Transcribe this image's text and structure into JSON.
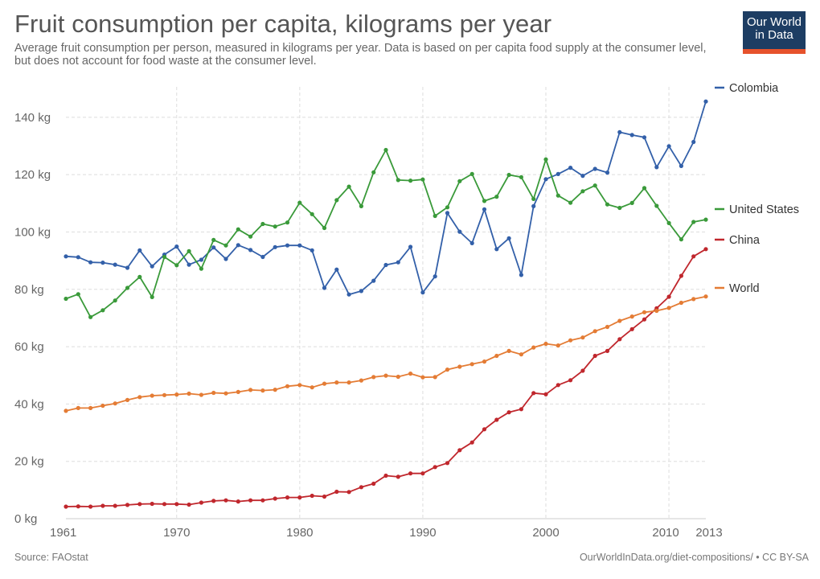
{
  "header": {
    "title": "Fruit consumption per capita, kilograms per year",
    "subtitle": "Average fruit consumption per person, measured in kilograms per year. Data is based on per capita food supply at the consumer level, but does not account for food waste at the consumer level.",
    "logo_line1": "Our World",
    "logo_line2": "in Data"
  },
  "footer": {
    "source": "Source: FAOstat",
    "credit": "OurWorldInData.org/diet-compositions/ • CC BY-SA"
  },
  "colors": {
    "Colombia": "#3360a9",
    "United States": "#3a9a3a",
    "China": "#c0272d",
    "World": "#e47c35"
  },
  "chart_data": {
    "type": "line",
    "title": "Fruit consumption per capita, kilograms per year",
    "ylabel": "",
    "xlabel": "",
    "xlim": [
      1961,
      2013
    ],
    "ylim": [
      0,
      145
    ],
    "y_ticks": [
      0,
      20,
      40,
      60,
      80,
      100,
      120,
      140
    ],
    "y_tick_labels": [
      "0 kg",
      "20 kg",
      "40 kg",
      "60 kg",
      "80 kg",
      "100 kg",
      "120 kg",
      "140 kg"
    ],
    "x_ticks": [
      1961,
      1970,
      1980,
      1990,
      2000,
      2010,
      2013
    ],
    "x_tick_labels": [
      "1961",
      "1970",
      "1980",
      "1990",
      "2000",
      "2010",
      "2013"
    ],
    "grid": true,
    "legend": "right",
    "x": [
      1961,
      1962,
      1963,
      1964,
      1965,
      1966,
      1967,
      1968,
      1969,
      1970,
      1971,
      1972,
      1973,
      1974,
      1975,
      1976,
      1977,
      1978,
      1979,
      1980,
      1981,
      1982,
      1983,
      1984,
      1985,
      1986,
      1987,
      1988,
      1989,
      1990,
      1991,
      1992,
      1993,
      1994,
      1995,
      1996,
      1997,
      1998,
      1999,
      2000,
      2001,
      2002,
      2003,
      2004,
      2005,
      2006,
      2007,
      2008,
      2009,
      2010,
      2011,
      2012,
      2013
    ],
    "series": [
      {
        "name": "Colombia",
        "values": [
          91.5,
          91.2,
          89.4,
          89.3,
          88.6,
          87.5,
          93.6,
          88.0,
          92.1,
          94.9,
          88.6,
          90.3,
          94.6,
          90.6,
          95.4,
          93.7,
          91.3,
          94.7,
          95.3,
          95.3,
          93.6,
          80.5,
          86.9,
          78.2,
          79.4,
          83.0,
          88.5,
          89.4,
          94.8,
          78.9,
          84.5,
          106.6,
          100.1,
          96.1,
          107.9,
          94.0,
          97.8,
          85.0,
          109.0,
          118.4,
          120.2,
          122.4,
          119.6,
          122.0,
          120.7,
          134.8,
          133.8,
          133.0,
          122.6,
          129.9,
          123.0,
          131.4,
          145.5
        ]
      },
      {
        "name": "United States",
        "values": [
          76.7,
          78.3,
          70.3,
          72.7,
          76.1,
          80.5,
          84.3,
          77.3,
          91.3,
          88.4,
          93.3,
          87.2,
          97.2,
          95.3,
          100.9,
          98.4,
          102.8,
          101.9,
          103.3,
          110.2,
          106.2,
          101.4,
          111.1,
          115.8,
          109.0,
          120.8,
          128.6,
          118.1,
          117.9,
          118.3,
          105.6,
          108.6,
          117.7,
          120.2,
          110.8,
          112.3,
          119.9,
          119.1,
          111.5,
          125.3,
          112.7,
          110.2,
          114.2,
          116.2,
          109.6,
          108.4,
          110.1,
          115.3,
          109.1,
          103.1,
          97.4,
          103.5,
          104.3
        ]
      },
      {
        "name": "China",
        "values": [
          4.2,
          4.3,
          4.2,
          4.5,
          4.5,
          4.8,
          5.1,
          5.2,
          5.1,
          5.1,
          4.9,
          5.6,
          6.2,
          6.4,
          6.0,
          6.4,
          6.4,
          7.0,
          7.4,
          7.4,
          8.0,
          7.7,
          9.4,
          9.3,
          11.0,
          12.2,
          15.0,
          14.6,
          15.8,
          15.8,
          18.0,
          19.4,
          23.9,
          26.6,
          31.2,
          34.5,
          37.1,
          38.2,
          43.8,
          43.4,
          46.6,
          48.3,
          51.6,
          56.8,
          58.5,
          62.6,
          66.1,
          69.5,
          73.4,
          77.4,
          84.7,
          91.5,
          94.0
        ]
      },
      {
        "name": "World",
        "values": [
          37.6,
          38.6,
          38.6,
          39.4,
          40.2,
          41.4,
          42.4,
          42.9,
          43.1,
          43.3,
          43.6,
          43.2,
          43.9,
          43.7,
          44.2,
          44.9,
          44.7,
          45.0,
          46.2,
          46.6,
          45.8,
          47.1,
          47.5,
          47.5,
          48.2,
          49.4,
          49.9,
          49.5,
          50.6,
          49.3,
          49.4,
          52.0,
          53.0,
          53.9,
          54.8,
          56.8,
          58.5,
          57.3,
          59.7,
          61.0,
          60.4,
          62.2,
          63.2,
          65.4,
          66.9,
          69.0,
          70.5,
          72.0,
          72.5,
          73.5,
          75.3,
          76.6,
          77.5
        ]
      }
    ]
  }
}
